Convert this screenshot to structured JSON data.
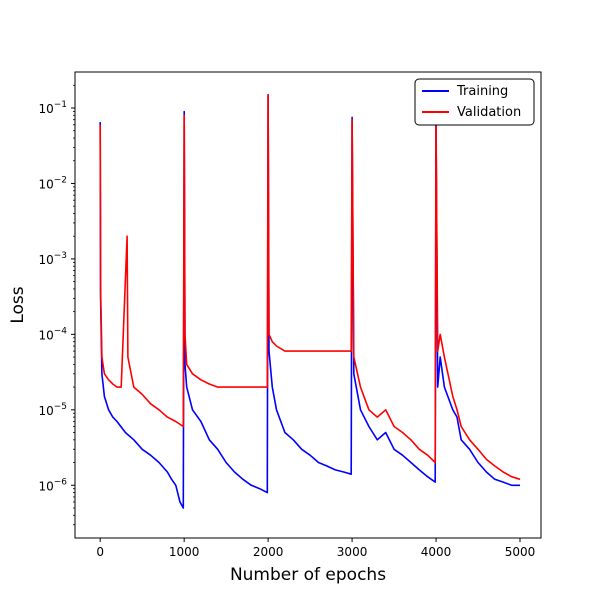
{
  "chart_data": {
    "type": "line",
    "title": "",
    "xlabel": "Number of epochs",
    "ylabel": "Loss",
    "xlim": [
      -300,
      5250
    ],
    "ylim": [
      2e-07,
      0.3
    ],
    "yscale": "log",
    "grid": false,
    "legend_position": "top-right",
    "x_ticks": [
      0,
      1000,
      2000,
      3000,
      4000,
      5000
    ],
    "x_tick_labels": [
      "0",
      "1000",
      "2000",
      "3000",
      "4000",
      "5000"
    ],
    "y_ticks": [
      1e-06,
      1e-05,
      0.0001,
      0.001,
      0.01,
      0.1
    ],
    "y_tick_labels": [
      {
        "base": "10",
        "exp": "−6"
      },
      {
        "base": "10",
        "exp": "−5"
      },
      {
        "base": "10",
        "exp": "−4"
      },
      {
        "base": "10",
        "exp": "−3"
      },
      {
        "base": "10",
        "exp": "−2"
      },
      {
        "base": "10",
        "exp": "−1"
      }
    ],
    "series": [
      {
        "name": "Training",
        "color": "#0000ff",
        "x": [
          0,
          5,
          20,
          50,
          100,
          150,
          200,
          300,
          400,
          500,
          600,
          700,
          800,
          850,
          900,
          950,
          990,
          1000,
          1010,
          1030,
          1100,
          1200,
          1300,
          1400,
          1500,
          1600,
          1700,
          1800,
          1900,
          1990,
          2000,
          2010,
          2050,
          2100,
          2200,
          2300,
          2400,
          2500,
          2600,
          2700,
          2800,
          2900,
          2990,
          3000,
          3020,
          3100,
          3200,
          3300,
          3400,
          3500,
          3600,
          3700,
          3800,
          3900,
          3990,
          4000,
          4020,
          4050,
          4100,
          4200,
          4250,
          4300,
          4400,
          4500,
          4600,
          4700,
          4800,
          4900,
          5000
        ],
        "values": [
          0.065,
          0.0003,
          3e-05,
          1.5e-05,
          1e-05,
          8e-06,
          7e-06,
          5e-06,
          4e-06,
          3e-06,
          2.5e-06,
          2e-06,
          1.5e-06,
          1.2e-06,
          1e-06,
          6e-07,
          5e-07,
          0.09,
          4e-05,
          2e-05,
          1e-05,
          7e-06,
          4e-06,
          3e-06,
          2e-06,
          1.5e-06,
          1.2e-06,
          1e-06,
          9e-07,
          8e-07,
          0.15,
          6e-05,
          2e-05,
          1e-05,
          5e-06,
          4e-06,
          3e-06,
          2.5e-06,
          2e-06,
          1.8e-06,
          1.6e-06,
          1.5e-06,
          1.4e-06,
          0.075,
          3e-05,
          1e-05,
          6e-06,
          4e-06,
          5e-06,
          3e-06,
          2.5e-06,
          2e-06,
          1.6e-06,
          1.3e-06,
          1.1e-06,
          0.07,
          2e-05,
          5e-05,
          2e-05,
          1e-05,
          8e-06,
          4e-06,
          3e-06,
          2e-06,
          1.5e-06,
          1.2e-06,
          1.1e-06,
          1e-06,
          1e-06
        ]
      },
      {
        "name": "Validation",
        "color": "#ff0000",
        "x": [
          0,
          5,
          20,
          50,
          100,
          150,
          200,
          250,
          320,
          330,
          400,
          500,
          600,
          700,
          800,
          900,
          990,
          1000,
          1010,
          1030,
          1100,
          1200,
          1300,
          1400,
          1500,
          1600,
          1700,
          1800,
          1900,
          1990,
          2000,
          2010,
          2050,
          2100,
          2200,
          2300,
          2400,
          2500,
          2600,
          2700,
          2800,
          2900,
          2990,
          3000,
          3020,
          3100,
          3200,
          3300,
          3400,
          3500,
          3600,
          3700,
          3800,
          3900,
          3990,
          4000,
          4020,
          4050,
          4100,
          4200,
          4250,
          4300,
          4400,
          4500,
          4600,
          4700,
          4800,
          4900,
          5000
        ],
        "values": [
          0.06,
          0.0004,
          5e-05,
          3e-05,
          2.5e-05,
          2.2e-05,
          2e-05,
          2e-05,
          0.002,
          5e-05,
          2e-05,
          1.6e-05,
          1.2e-05,
          1e-05,
          8e-06,
          7e-06,
          6e-06,
          0.08,
          0.0001,
          4e-05,
          3e-05,
          2.5e-05,
          2.2e-05,
          2e-05,
          2e-05,
          2e-05,
          2e-05,
          2e-05,
          2e-05,
          2e-05,
          0.15,
          0.0001,
          8e-05,
          7e-05,
          6e-05,
          6e-05,
          6e-05,
          6e-05,
          6e-05,
          6e-05,
          6e-05,
          6e-05,
          6e-05,
          0.07,
          5e-05,
          2e-05,
          1e-05,
          8e-06,
          1e-05,
          6e-06,
          5e-06,
          4e-06,
          3e-06,
          2.5e-06,
          2e-06,
          0.07,
          6e-05,
          0.0001,
          5e-05,
          1.5e-05,
          1e-05,
          6e-06,
          4e-06,
          3e-06,
          2.2e-06,
          1.8e-06,
          1.5e-06,
          1.3e-06,
          1.2e-06
        ]
      }
    ]
  }
}
